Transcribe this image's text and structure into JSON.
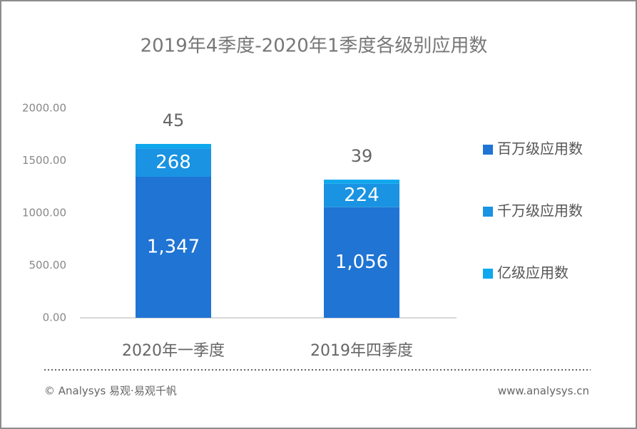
{
  "chart_data": {
    "type": "stacked_bar",
    "title": "2019年4季度-2020年1季度各级别应用数",
    "categories": [
      "2020年一季度",
      "2019年四季度"
    ],
    "series": [
      {
        "name": "百万级应用数",
        "color": "#1f74d4",
        "values": [
          1347,
          1056
        ],
        "value_labels": [
          "1,347",
          "1,056"
        ]
      },
      {
        "name": "千万级应用数",
        "color": "#1993e2",
        "values": [
          268,
          224
        ]
      },
      {
        "name": "亿级应用数",
        "color": "#0fa7ee",
        "values": [
          45,
          39
        ]
      }
    ],
    "ylim": [
      0,
      2000
    ],
    "yticks": [
      {
        "value": 0,
        "label": "0.00"
      },
      {
        "value": 500,
        "label": "500.00"
      },
      {
        "value": 1000,
        "label": "1000.00"
      },
      {
        "value": 1500,
        "label": "1500.00"
      },
      {
        "value": 2000,
        "label": "2000.00"
      }
    ],
    "legend": "right",
    "footer_left": "© Analysys 易观·易观千帆",
    "footer_right": "www.analysys.cn"
  }
}
